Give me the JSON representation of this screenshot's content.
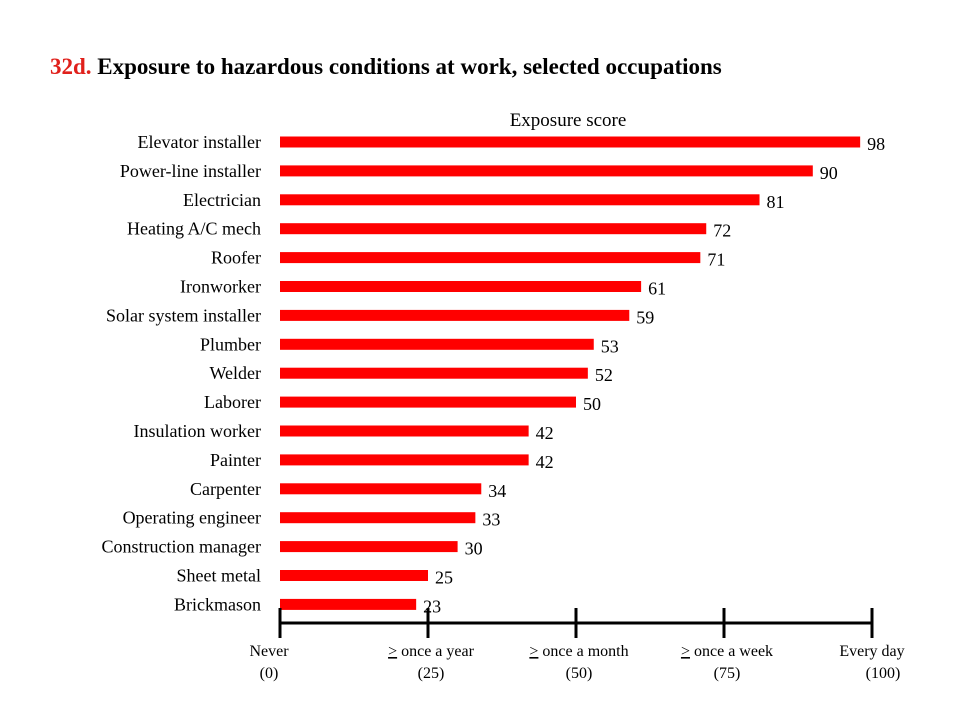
{
  "title": {
    "number": "32d.",
    "text": "Exposure to hazardous conditions at work, selected occupations"
  },
  "colors": {
    "bar": "#ff0000",
    "title_number": "#e0201b",
    "axis": "#000000"
  },
  "chart_data": {
    "type": "bar",
    "orientation": "horizontal",
    "xlabel": "Exposure score",
    "xlim": [
      0,
      100
    ],
    "categories": [
      "Elevator installer",
      "Power-line installer",
      "Electrician",
      "Heating A/C mech",
      "Roofer",
      "Ironworker",
      "Solar system installer",
      "Plumber",
      "Welder",
      "Laborer",
      "Insulation worker",
      "Painter",
      "Carpenter",
      "Operating engineer",
      "Construction manager",
      "Sheet metal",
      "Brickmason"
    ],
    "values": [
      98,
      90,
      81,
      72,
      71,
      61,
      59,
      53,
      52,
      50,
      42,
      42,
      34,
      33,
      30,
      25,
      23
    ],
    "ticks": [
      {
        "value": 0,
        "line1": "Never",
        "line2": "(0)"
      },
      {
        "value": 25,
        "line1": "> once a year",
        "line2": "(25)"
      },
      {
        "value": 50,
        "line1": "> once a month",
        "line2": "(50)"
      },
      {
        "value": 75,
        "line1": "> once a week",
        "line2": "(75)"
      },
      {
        "value": 100,
        "line1": "Every day",
        "line2": "(100)"
      }
    ],
    "grid": false,
    "legend": "none"
  }
}
